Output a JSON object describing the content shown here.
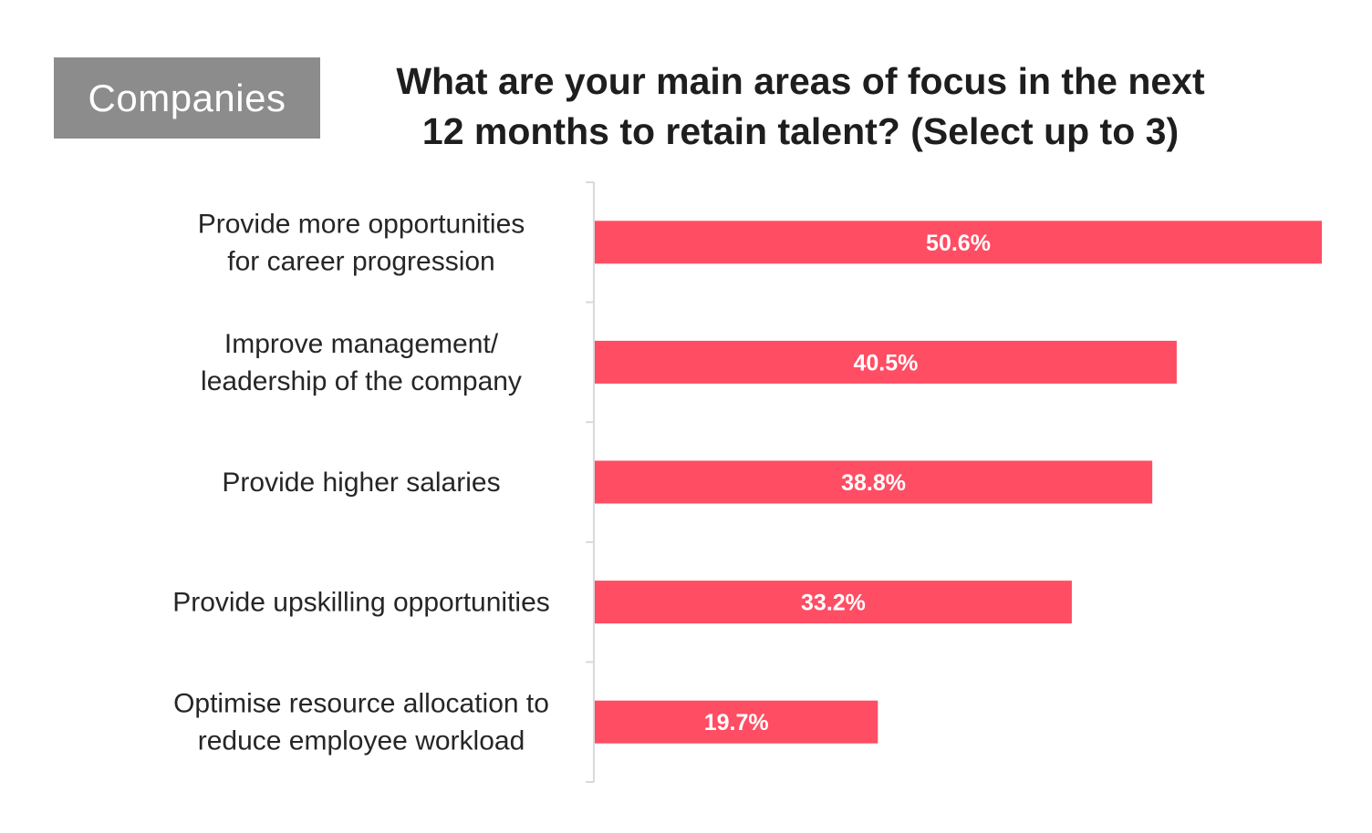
{
  "tag": "Companies",
  "title": "What are your main areas of focus in the next\n12 months to retain talent? (Select up to 3)",
  "colors": {
    "bar": "#ff4d63",
    "axis": "#d9d9d9",
    "tag_bg": "#8c8c8c"
  },
  "chart_data": {
    "type": "bar",
    "orientation": "horizontal",
    "categories": [
      [
        "Provide more opportunities",
        "for career progression"
      ],
      [
        "Improve management/",
        "leadership of the company"
      ],
      [
        "Provide higher salaries"
      ],
      [
        "Provide upskilling opportunities"
      ],
      [
        "Optimise resource allocation to",
        "reduce employee workload"
      ]
    ],
    "values": [
      50.6,
      40.5,
      38.8,
      33.2,
      19.7
    ],
    "value_labels": [
      "50.6%",
      "40.5%",
      "38.8%",
      "33.2%",
      "19.7%"
    ],
    "unit": "%",
    "xlim": [
      0,
      50.6
    ],
    "grid": false,
    "legend": "none"
  }
}
